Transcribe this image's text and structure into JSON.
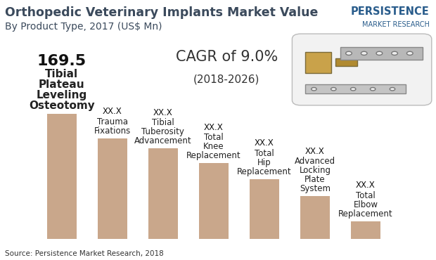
{
  "chart_data": {
    "type": "bar",
    "title": "Orthopedic Veterinary Implants Market Value",
    "subtitle": "By Product Type, 2017 (US$ Mn)",
    "categories": [
      "Tibial Plateau Leveling Osteotomy",
      "Trauma Fixations",
      "Tibial Tuberosity Advancement",
      "Total Knee Replacement",
      "Total Hip Replacement",
      "Advanced Locking Plate System",
      "Total Elbow Replacement"
    ],
    "values": [
      169.5,
      136.6,
      123.0,
      102.7,
      81.4,
      58.1,
      24.2
    ],
    "value_labels": [
      "169.5",
      "XX.X",
      "XX.X",
      "XX.X",
      "XX.X",
      "XX.X",
      "XX.X"
    ],
    "color": "#c9a78b",
    "data_labels": true,
    "tick_labels": false,
    "annotations": [
      "CAGR of 9.0%",
      "(2018-2026)"
    ],
    "source": "Source: Persistence Market Research, 2018",
    "logo": [
      "PERSISTENCE",
      "MARKET RESEARCH"
    ]
  }
}
